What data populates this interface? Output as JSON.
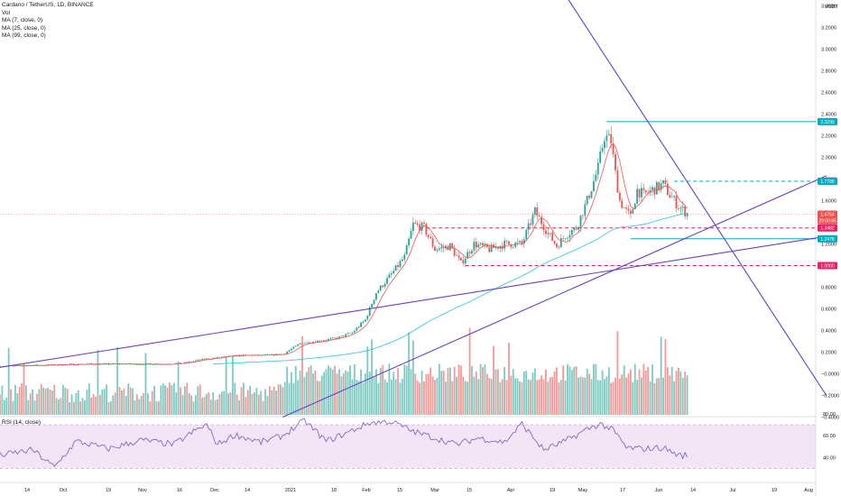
{
  "legend": {
    "title": "Cardano / TetherUS, 1D, BINANCE",
    "vol": "Vol",
    "ma7": "MA (7, close, 0)",
    "ma25": "MA (25, close, 0)",
    "ma99": "MA (99, close, 0)"
  },
  "rsi_legend": "RSI (14, close)",
  "colors": {
    "up": "#26a69a",
    "down": "#ef5350",
    "ma7": "#ef5350",
    "ma99": "#26c6da",
    "trend": "#6a3fc8",
    "level_cyan": "#00acc1",
    "level_red": "#e91e63",
    "rsi_line": "#7e57c2",
    "rsi_band": "#f3e5f5",
    "current": "#ef5350"
  },
  "chart_data": {
    "type": "candlestick",
    "title": "Cardano / TetherUS, 1D, BINANCE",
    "currency": "USDT",
    "price_ticks": [
      "3.4000",
      "3.2000",
      "3.0000",
      "2.8000",
      "2.6000",
      "2.4000",
      "2.2000",
      "2.0000",
      "1.8000",
      "1.6000",
      "1.4000",
      "1.2000",
      "1.0000",
      "0.8000",
      "0.6000",
      "0.4000",
      "0.2000",
      "−0.0000",
      "−0.2000",
      "−0.4000"
    ],
    "ylim": [
      -0.4,
      3.45
    ],
    "rsi_ticks": [
      "80.00",
      "60.00",
      "40.00"
    ],
    "rsi_band": [
      30,
      70
    ],
    "x_labels": [
      "14",
      "Oct",
      "19",
      "Nov",
      "16",
      "Dec",
      "14",
      "2021",
      "18",
      "Feb",
      "15",
      "Mar",
      "15",
      "Apr",
      "19",
      "May",
      "17",
      "Jun",
      "14",
      "Jul",
      "19",
      "Aug"
    ],
    "price_tags": [
      {
        "label": "2.3299",
        "value": 2.3299,
        "kind": "cyan"
      },
      {
        "label": "1.7788",
        "value": 1.7788,
        "kind": "cyan"
      },
      {
        "label": "1.4754",
        "value": 1.4754,
        "kind": "current"
      },
      {
        "label": "29:00:45",
        "value": 1.4154,
        "kind": "current"
      },
      {
        "label": "1.3482",
        "value": 1.3482,
        "kind": "red"
      },
      {
        "label": "1.2478",
        "value": 1.2478,
        "kind": "cyan"
      },
      {
        "label": "1.0000",
        "value": 1.0,
        "kind": "red"
      }
    ],
    "levels": [
      {
        "value": 2.3299,
        "kind": "cyan",
        "style": "solid",
        "from_day": 279
      },
      {
        "value": 1.7788,
        "kind": "cyan",
        "style": "dashed",
        "from_day": 310
      },
      {
        "value": 1.3482,
        "kind": "red",
        "style": "dashed",
        "from_day": 193
      },
      {
        "value": 1.2478,
        "kind": "cyan",
        "style": "solid",
        "from_day": 290
      },
      {
        "value": 1.0,
        "kind": "red",
        "style": "dashed",
        "from_day": 214
      }
    ],
    "trendlines": [
      {
        "p1": [
          0,
          0.06
        ],
        "p2": [
          380,
          1.27
        ]
      },
      {
        "p1": [
          130,
          -0.4
        ],
        "p2": [
          380,
          1.83
        ]
      },
      {
        "p1": [
          260,
          3.5
        ],
        "p2": [
          380,
          -0.2
        ]
      }
    ],
    "anchors": [
      [
        0,
        0.07
      ],
      [
        20,
        0.08
      ],
      [
        40,
        0.09
      ],
      [
        60,
        0.09
      ],
      [
        75,
        0.09
      ],
      [
        85,
        0.1
      ],
      [
        92,
        0.13
      ],
      [
        100,
        0.15
      ],
      [
        110,
        0.17
      ],
      [
        120,
        0.17
      ],
      [
        130,
        0.18
      ],
      [
        138,
        0.28
      ],
      [
        145,
        0.3
      ],
      [
        155,
        0.33
      ],
      [
        162,
        0.38
      ],
      [
        168,
        0.5
      ],
      [
        173,
        0.75
      ],
      [
        180,
        0.92
      ],
      [
        186,
        1.08
      ],
      [
        190,
        1.38
      ],
      [
        195,
        1.35
      ],
      [
        200,
        1.15
      ],
      [
        207,
        1.18
      ],
      [
        212,
        1.02
      ],
      [
        218,
        1.2
      ],
      [
        225,
        1.15
      ],
      [
        232,
        1.2
      ],
      [
        240,
        1.2
      ],
      [
        246,
        1.5
      ],
      [
        252,
        1.3
      ],
      [
        256,
        1.18
      ],
      [
        260,
        1.28
      ],
      [
        265,
        1.35
      ],
      [
        270,
        1.6
      ],
      [
        275,
        1.9
      ],
      [
        278,
        2.2
      ],
      [
        281,
        2.15
      ],
      [
        283,
        1.85
      ],
      [
        285,
        1.6
      ],
      [
        288,
        1.5
      ],
      [
        290,
        1.45
      ],
      [
        293,
        1.7
      ],
      [
        296,
        1.65
      ],
      [
        300,
        1.7
      ],
      [
        305,
        1.75
      ],
      [
        308,
        1.65
      ],
      [
        312,
        1.55
      ],
      [
        316,
        1.48
      ]
    ],
    "volume_days": 317,
    "rsi_anchors": [
      [
        0,
        42
      ],
      [
        15,
        47
      ],
      [
        25,
        31
      ],
      [
        35,
        55
      ],
      [
        50,
        48
      ],
      [
        65,
        56
      ],
      [
        80,
        52
      ],
      [
        90,
        65
      ],
      [
        95,
        70
      ],
      [
        100,
        52
      ],
      [
        108,
        61
      ],
      [
        120,
        54
      ],
      [
        130,
        60
      ],
      [
        140,
        74
      ],
      [
        150,
        55
      ],
      [
        160,
        63
      ],
      [
        170,
        72
      ],
      [
        180,
        73
      ],
      [
        190,
        64
      ],
      [
        200,
        58
      ],
      [
        210,
        52
      ],
      [
        220,
        58
      ],
      [
        232,
        54
      ],
      [
        240,
        71
      ],
      [
        250,
        47
      ],
      [
        260,
        55
      ],
      [
        270,
        66
      ],
      [
        276,
        71
      ],
      [
        282,
        65
      ],
      [
        288,
        49
      ],
      [
        295,
        48
      ],
      [
        305,
        49
      ],
      [
        312,
        42
      ],
      [
        316,
        42
      ]
    ]
  }
}
